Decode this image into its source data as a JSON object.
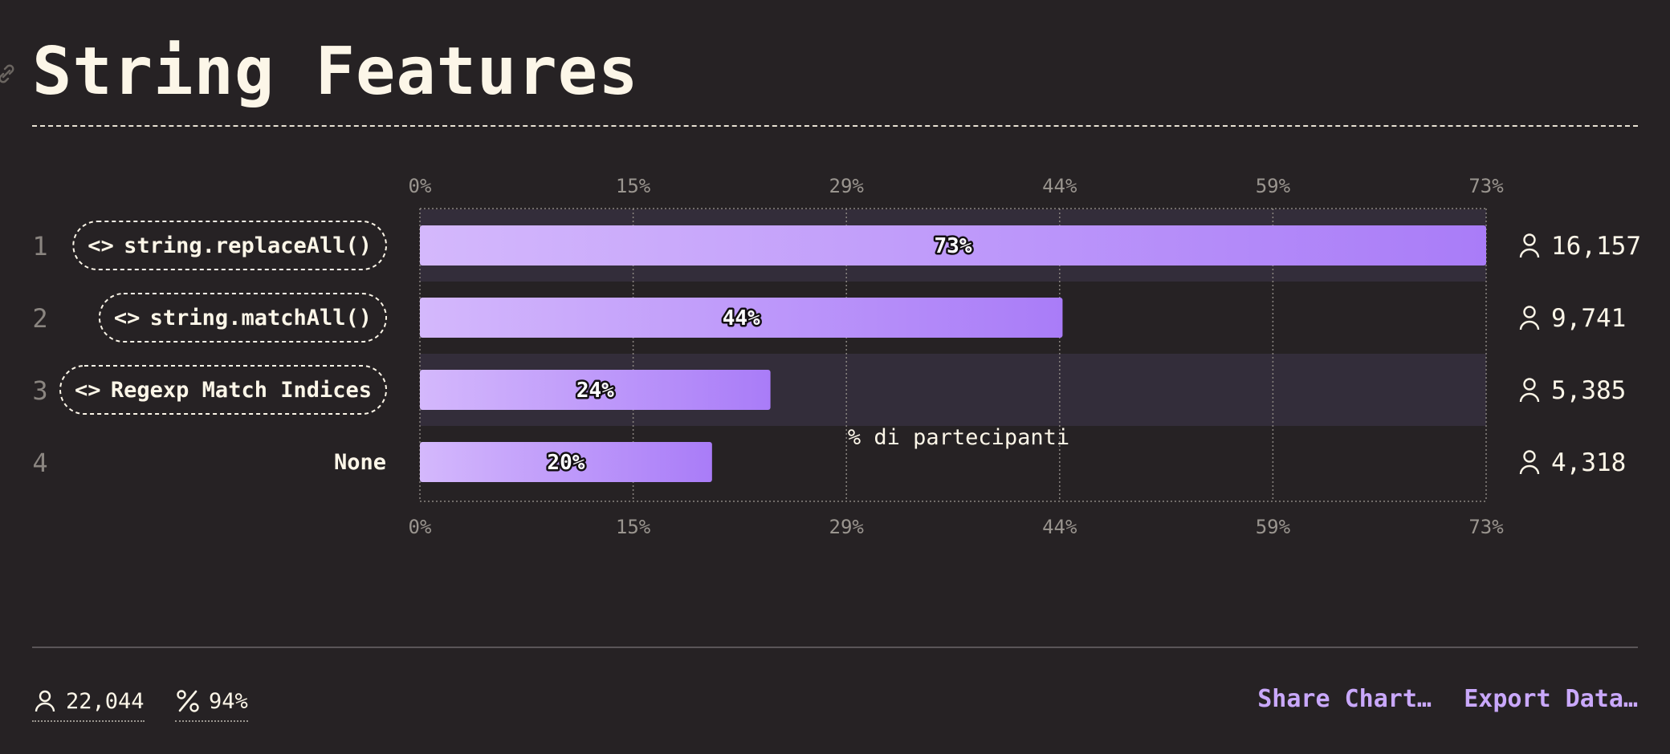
{
  "header": {
    "title": "String Features"
  },
  "chart_data": {
    "type": "bar",
    "orientation": "horizontal",
    "title": "String Features",
    "xlabel": "% di partecipanti",
    "xlim": [
      0,
      73
    ],
    "x_ticks": [
      "0%",
      "15%",
      "29%",
      "44%",
      "59%",
      "73%"
    ],
    "categories": [
      "string.replaceAll()",
      "string.matchAll()",
      "Regexp Match Indices",
      "None"
    ],
    "ranks": [
      "1",
      "2",
      "3",
      "4"
    ],
    "values": [
      73,
      44,
      24,
      20
    ],
    "value_labels": [
      "73%",
      "44%",
      "24%",
      "20%"
    ],
    "counts": [
      "16,157",
      "9,741",
      "5,385",
      "4,318"
    ],
    "code_categories": [
      true,
      true,
      true,
      false
    ],
    "grid": true,
    "bar_color_start": "#d4b8fc",
    "bar_color_end": "#a97cf8"
  },
  "footer": {
    "total_respondents": "22,044",
    "completion_pct": "94%",
    "share_label": "Share Chart…",
    "export_label": "Export Data…"
  },
  "colors": {
    "background": "#262224",
    "text": "#fcf6e8",
    "accent": "#c9a8fb",
    "row_highlight": "#332d3a"
  }
}
